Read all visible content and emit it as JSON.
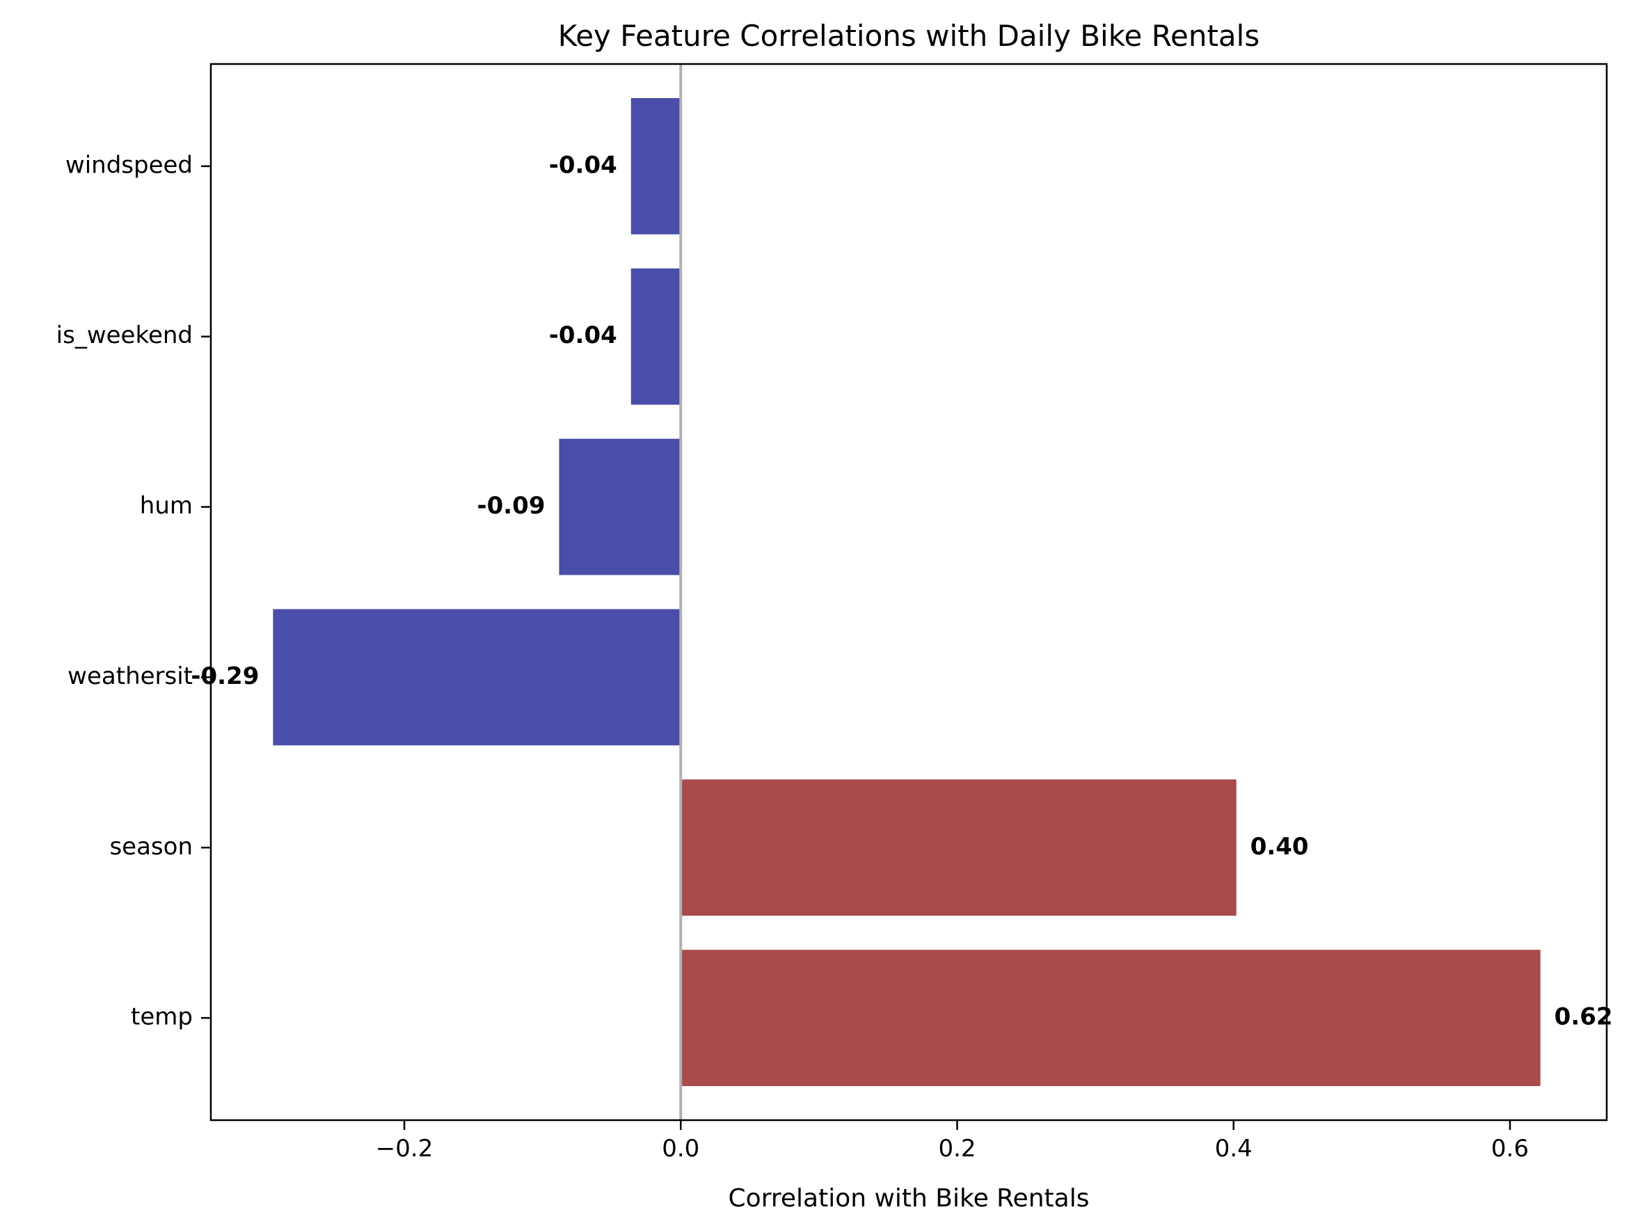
{
  "chart_data": {
    "type": "bar",
    "orientation": "horizontal",
    "title": "Key Feature Correlations with Daily Bike Rentals",
    "xlabel": "Correlation with Bike Rentals",
    "ylabel": "",
    "categories": [
      "temp",
      "season",
      "weathersit",
      "hum",
      "is_weekend",
      "windspeed"
    ],
    "values": [
      0.622,
      0.402,
      -0.295,
      -0.088,
      -0.036,
      -0.036
    ],
    "value_labels": [
      "0.62",
      "0.40",
      "-0.29",
      "-0.09",
      "-0.04",
      "-0.04"
    ],
    "xlim": [
      -0.34,
      0.67
    ],
    "xticks": [
      -0.2,
      0.0,
      0.2,
      0.4,
      0.6
    ],
    "xtick_labels": [
      "−0.2",
      "0.0",
      "0.2",
      "0.4",
      "0.6"
    ],
    "grid": false,
    "zero_line": true,
    "colors": {
      "positive": "#a94a4c",
      "negative": "#4b4daa",
      "zero_line": "#b0b0b0",
      "axes": "#000000"
    }
  }
}
